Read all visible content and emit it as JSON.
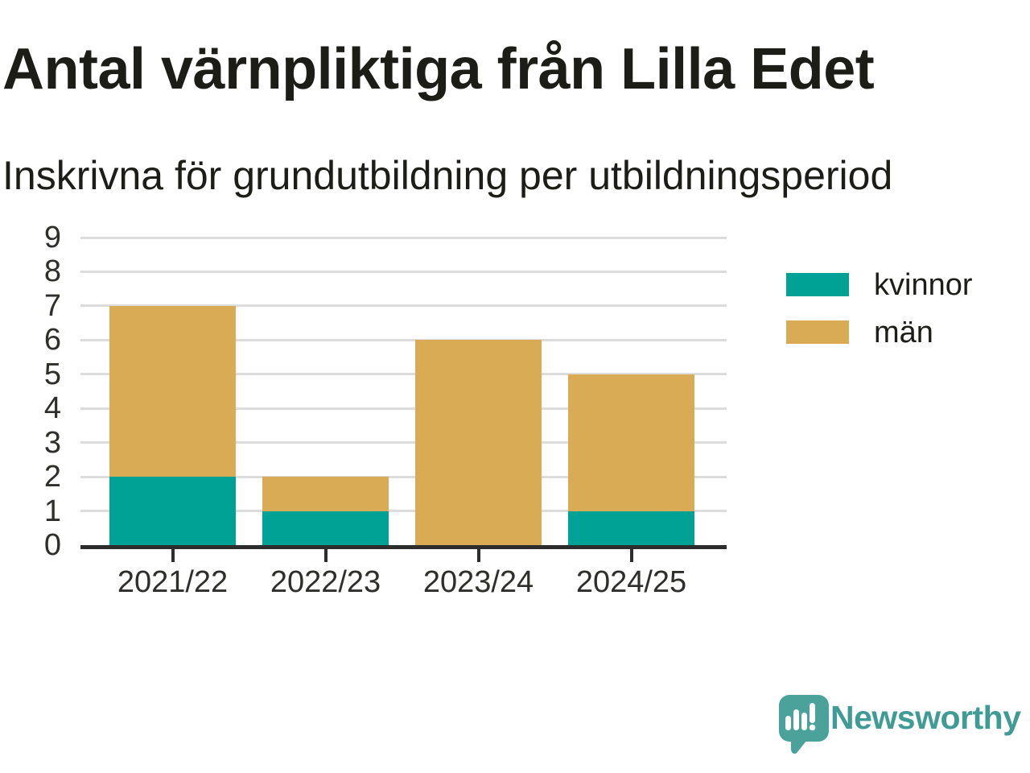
{
  "header": {
    "title": "Antal värnpliktiga från Lilla Edet",
    "subtitle": "Inskrivna för grundutbildning per utbildningsperiod"
  },
  "chart_data": {
    "type": "bar",
    "stacked": true,
    "title": "Antal värnpliktiga från Lilla Edet",
    "subtitle": "Inskrivna för grundutbildning per utbildningsperiod",
    "categories": [
      "2021/22",
      "2022/23",
      "2023/24",
      "2024/25"
    ],
    "series": [
      {
        "name": "kvinnor",
        "color": "#00a296",
        "values": [
          2,
          1,
          0,
          1
        ]
      },
      {
        "name": "män",
        "color": "#daab55",
        "values": [
          5,
          1,
          6,
          4
        ]
      }
    ],
    "xlabel": "",
    "ylabel": "",
    "ylim": [
      0,
      9
    ],
    "yticks": [
      0,
      1,
      2,
      3,
      4,
      5,
      6,
      7,
      8,
      9
    ],
    "grid": true,
    "legend_position": "right"
  },
  "branding": {
    "name": "Newsworthy",
    "color": "#3f9b94",
    "icon": "newsworthy-speech-bubble-chart-icon",
    "icon_color": "#4ba29b"
  },
  "colors": {
    "axis_line": "#2d2d2d",
    "gridline": "#dcdcdc",
    "text": "#1d1d18",
    "tick_label": "#2e2e2a"
  }
}
